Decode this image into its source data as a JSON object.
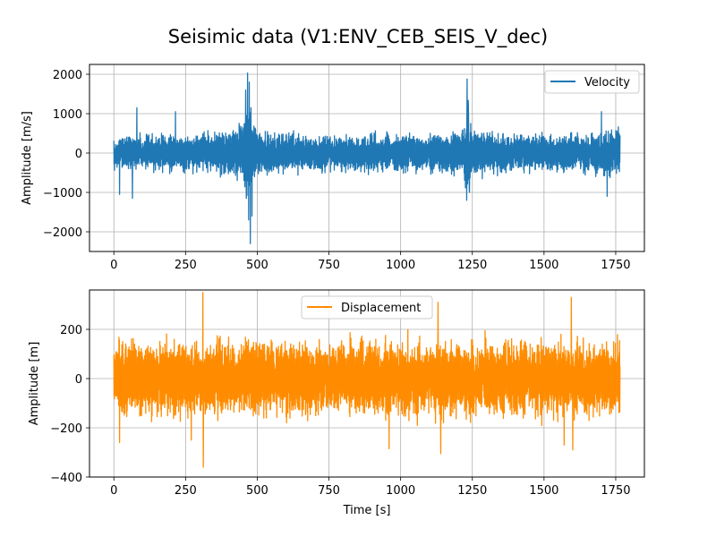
{
  "chart_data": [
    {
      "type": "line",
      "title": "Seisimic data (V1:ENV_CEB_SEIS_V_dec)",
      "xlabel": "",
      "ylabel": "Amplitude [m/s]",
      "xlim": [
        -85,
        1850
      ],
      "ylim": [
        -2500,
        2250
      ],
      "xticks": [
        0,
        250,
        500,
        750,
        1000,
        1250,
        1500,
        1750
      ],
      "yticks": [
        -2000,
        -1000,
        0,
        1000,
        2000
      ],
      "xtick_labels": [
        "0",
        "250",
        "500",
        "750",
        "1000",
        "1250",
        "1500",
        "1750"
      ],
      "ytick_labels": [
        "−2000",
        "−1000",
        "0",
        "1000",
        "2000"
      ],
      "grid": true,
      "legend_position": "upper right",
      "series": [
        {
          "name": "Velocity",
          "color": "#1f77b4",
          "x_range": [
            0,
            1765
          ],
          "base_envelope": [
            [
              0,
              550
            ],
            [
              100,
              600
            ],
            [
              200,
              650
            ],
            [
              300,
              650
            ],
            [
              400,
              800
            ],
            [
              450,
              1100
            ],
            [
              470,
              1900
            ],
            [
              480,
              1100
            ],
            [
              500,
              750
            ],
            [
              600,
              650
            ],
            [
              750,
              600
            ],
            [
              900,
              650
            ],
            [
              1000,
              650
            ],
            [
              1150,
              650
            ],
            [
              1220,
              800
            ],
            [
              1235,
              1850
            ],
            [
              1250,
              800
            ],
            [
              1350,
              650
            ],
            [
              1500,
              650
            ],
            [
              1600,
              650
            ],
            [
              1700,
              750
            ],
            [
              1765,
              950
            ]
          ],
          "extremes": [
            {
              "x": 460,
              "y": 1600
            },
            {
              "x": 466,
              "y": 2030
            },
            {
              "x": 472,
              "y": 1800
            },
            {
              "x": 478,
              "y": 1150
            },
            {
              "x": 462,
              "y": -1150
            },
            {
              "x": 470,
              "y": -1700
            },
            {
              "x": 476,
              "y": -2300
            },
            {
              "x": 482,
              "y": -1600
            },
            {
              "x": 1232,
              "y": 1880
            },
            {
              "x": 1236,
              "y": 1200
            },
            {
              "x": 1230,
              "y": -1200
            },
            {
              "x": 1240,
              "y": -1000
            },
            {
              "x": 20,
              "y": -1050
            },
            {
              "x": 65,
              "y": -1150
            },
            {
              "x": 80,
              "y": 1150
            },
            {
              "x": 215,
              "y": 1050
            },
            {
              "x": 1700,
              "y": 1050
            },
            {
              "x": 1720,
              "y": -1100
            }
          ]
        }
      ]
    },
    {
      "type": "line",
      "title": "",
      "xlabel": "Time [s]",
      "ylabel": "Amplitude [m]",
      "xlim": [
        -85,
        1850
      ],
      "ylim": [
        -400,
        360
      ],
      "xticks": [
        0,
        250,
        500,
        750,
        1000,
        1250,
        1500,
        1750
      ],
      "yticks": [
        -400,
        -200,
        0,
        200
      ],
      "xtick_labels": [
        "0",
        "250",
        "500",
        "750",
        "1000",
        "1250",
        "1500",
        "1750"
      ],
      "ytick_labels": [
        "−400",
        "−200",
        "0",
        "200"
      ],
      "grid": true,
      "legend_position": "upper center",
      "series": [
        {
          "name": "Displacement",
          "color": "#ff8c00",
          "x_range": [
            0,
            1765
          ],
          "base_envelope": [
            [
              0,
              200
            ],
            [
              300,
              210
            ],
            [
              600,
              210
            ],
            [
              900,
              210
            ],
            [
              1200,
              210
            ],
            [
              1500,
              210
            ],
            [
              1765,
              210
            ]
          ],
          "extremes": [
            {
              "x": 310,
              "y": 350
            },
            {
              "x": 312,
              "y": -360
            },
            {
              "x": 1595,
              "y": 330
            },
            {
              "x": 1600,
              "y": -290
            },
            {
              "x": 1140,
              "y": -305
            },
            {
              "x": 1130,
              "y": 310
            },
            {
              "x": 270,
              "y": -250
            },
            {
              "x": 1570,
              "y": -270
            },
            {
              "x": 20,
              "y": -260
            },
            {
              "x": 960,
              "y": -285
            }
          ]
        }
      ]
    }
  ]
}
